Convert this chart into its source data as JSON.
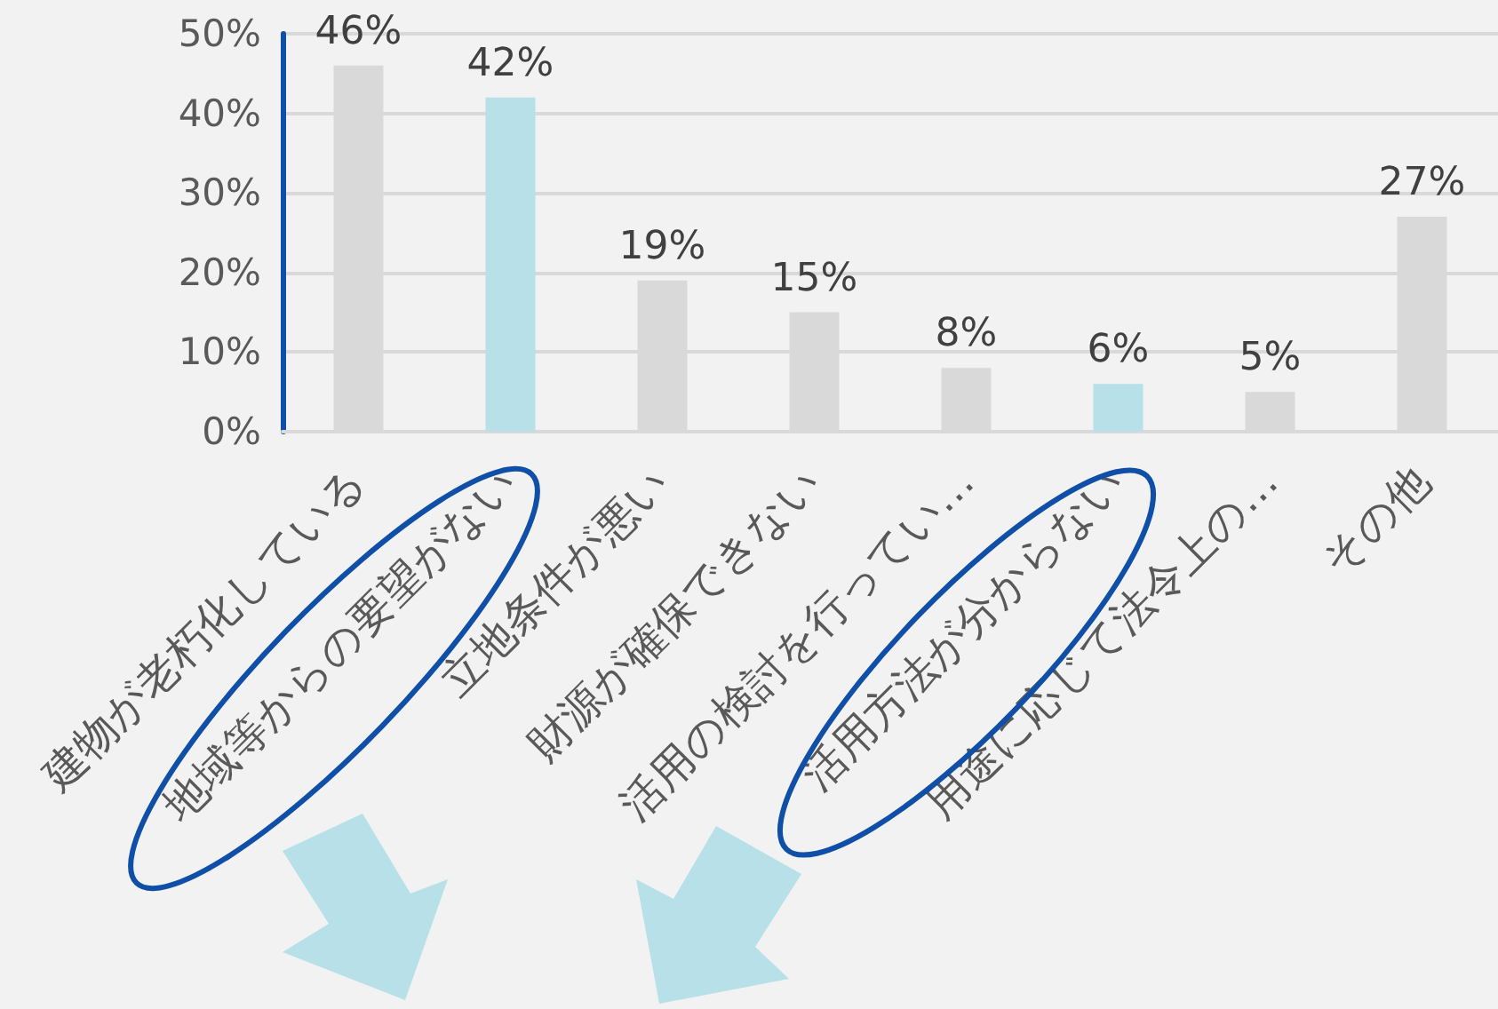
{
  "chart_data": {
    "type": "bar",
    "categories": [
      "建物が老朽化している",
      "地域等からの要望がない",
      "立地条件が悪い",
      "財源が確保できない",
      "活用の検討を行ってい…",
      "活用方法が分からない",
      "用途に応じて法令上の…",
      "その他"
    ],
    "values": [
      46,
      42,
      19,
      15,
      8,
      6,
      5,
      27
    ],
    "value_labels": [
      "46%",
      "42%",
      "19%",
      "15%",
      "8%",
      "6%",
      "5%",
      "27%"
    ],
    "colors": [
      "#d9d9d9",
      "#b7e0e8",
      "#d9d9d9",
      "#d9d9d9",
      "#d9d9d9",
      "#b7e0e8",
      "#d9d9d9",
      "#d9d9d9"
    ],
    "ylim": [
      0,
      50
    ],
    "yticks": [
      {
        "value": 0,
        "label": "0%"
      },
      {
        "value": 10,
        "label": "10%"
      },
      {
        "value": 20,
        "label": "20%"
      },
      {
        "value": 30,
        "label": "30%"
      },
      {
        "value": 40,
        "label": "40%"
      },
      {
        "value": 50,
        "label": "50%"
      }
    ],
    "grid": "y"
  }
}
